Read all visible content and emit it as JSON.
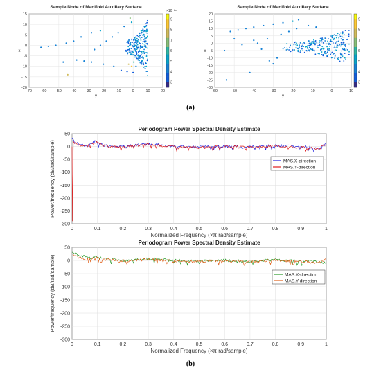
{
  "figure": {
    "caption_a": "(a)",
    "caption_b": "(b)"
  },
  "chart_data": [
    {
      "type": "scatter",
      "title": "Sample Node of Manifold Auxiliary Surface",
      "xlabel": "y",
      "ylabel": "x",
      "xlim": [
        -70,
        20
      ],
      "ylim": [
        -20,
        15
      ],
      "xticks": [
        "-70",
        "-60",
        "-50",
        "-40",
        "-30",
        "-20",
        "-10",
        "0",
        "10",
        "20"
      ],
      "yticks": [
        "15",
        "10",
        "5",
        "0",
        "-5",
        "-10",
        "-15",
        "-20"
      ],
      "colorbar": {
        "exponent": "×10⁻²⁸",
        "ticks": [
          "3",
          "4",
          "5",
          "6",
          "7",
          "8",
          "9"
        ],
        "range": [
          2.5,
          9.5
        ]
      },
      "grid": true,
      "points": [
        [
          -62,
          -1,
          4
        ],
        [
          -57,
          -0.5,
          4
        ],
        [
          -52,
          0,
          4
        ],
        [
          -45,
          1,
          4
        ],
        [
          -40,
          2,
          4
        ],
        [
          -35,
          4,
          4
        ],
        [
          -28,
          6,
          4
        ],
        [
          -22,
          7,
          5
        ],
        [
          -38,
          -7,
          4
        ],
        [
          -33,
          -7.5,
          4
        ],
        [
          -28,
          -8,
          4
        ],
        [
          -20,
          -9,
          4
        ],
        [
          -13,
          -10,
          4
        ],
        [
          -47,
          -8,
          4
        ],
        [
          -44,
          -14,
          8
        ],
        [
          -2,
          13,
          7
        ],
        [
          -1,
          11,
          5
        ],
        [
          -6,
          9,
          4
        ],
        [
          -10,
          6,
          4
        ],
        [
          -14,
          4,
          4
        ],
        [
          -18,
          2,
          4
        ],
        [
          -22,
          0,
          4
        ],
        [
          -26,
          -2,
          4
        ],
        [
          -8,
          -12,
          3
        ],
        [
          -4,
          -12.5,
          3
        ],
        [
          0,
          -13,
          3
        ],
        [
          -3,
          -9,
          8
        ],
        [
          -1,
          -10,
          9
        ],
        [
          0.5,
          -8,
          6
        ],
        [
          2,
          -10,
          4
        ]
      ],
      "dense_region": {
        "y_range": [
          -5,
          10
        ],
        "x_range": [
          -15,
          13
        ]
      }
    },
    {
      "type": "scatter",
      "title": "Sample Node of Manifold Auxiliary Surface",
      "xlabel": "y",
      "ylabel": "x",
      "xlim": [
        -60,
        10
      ],
      "ylim": [
        -30,
        20
      ],
      "xticks": [
        "-60",
        "-50",
        "-40",
        "-30",
        "-20",
        "-10",
        "0",
        "10"
      ],
      "yticks": [
        "20",
        "15",
        "10",
        "5",
        "0",
        "-5",
        "-10",
        "-15",
        "-20",
        "-25",
        "-30"
      ],
      "colorbar": {
        "ticks": [
          "3",
          "4",
          "5",
          "6",
          "7",
          "8",
          "9"
        ],
        "range": [
          2.5,
          9.5
        ]
      },
      "grid": true,
      "points": [
        [
          -52,
          8,
          4
        ],
        [
          -48,
          9,
          4
        ],
        [
          -44,
          10,
          4
        ],
        [
          -40,
          11,
          4
        ],
        [
          -35,
          12,
          4
        ],
        [
          -30,
          13,
          4
        ],
        [
          -25,
          14,
          4
        ],
        [
          -20,
          15,
          5
        ],
        [
          -17,
          16,
          4
        ],
        [
          -54,
          -25,
          4
        ],
        [
          -42,
          -20,
          4
        ],
        [
          -55,
          -5,
          4
        ],
        [
          -32,
          -12,
          4
        ],
        [
          -30,
          -14,
          4
        ],
        [
          -28,
          -10,
          4
        ],
        [
          -36,
          -4,
          4
        ],
        [
          -38,
          0,
          4
        ],
        [
          -40,
          2,
          4
        ],
        [
          -33,
          3,
          4
        ],
        [
          -26,
          6,
          4
        ],
        [
          -22,
          8,
          4
        ],
        [
          -18,
          10,
          4
        ],
        [
          -12,
          12,
          4
        ],
        [
          -8,
          11,
          4
        ],
        [
          -46,
          -1,
          4
        ],
        [
          -50,
          3,
          4
        ]
      ],
      "dense_region": {
        "y_range": [
          -26,
          9
        ],
        "x_range": [
          -15,
          10
        ]
      }
    },
    {
      "type": "line",
      "title": "Periodogram Power Spectral Density Estimate",
      "xlabel": "Normalized Frequency  (×π rad/sample)",
      "ylabel": "Power/frequency (dB/rad/sample)",
      "xlim": [
        0,
        1
      ],
      "ylim": [
        -300,
        50
      ],
      "xticks": [
        "0",
        "0.1",
        "0.2",
        "0.3",
        "0.4",
        "0.5",
        "0.6",
        "0.7",
        "0.8",
        "0.9",
        "1"
      ],
      "yticks": [
        "50",
        "0",
        "-50",
        "-100",
        "-150",
        "-200",
        "-250",
        "-300"
      ],
      "grid": true,
      "legend_position": "right",
      "series": [
        {
          "name": "MAS.X-direction",
          "color": "#1f1fdf",
          "x": [
            0,
            0.01,
            0.03,
            0.06,
            0.08,
            0.09,
            0.1,
            0.12,
            0.15,
            0.2,
            0.3,
            0.4,
            0.5,
            0.6,
            0.7,
            0.8,
            0.9,
            0.97,
            1
          ],
          "y": [
            34,
            20,
            8,
            4,
            12,
            20,
            16,
            6,
            2,
            -1,
            10,
            2,
            -2,
            2,
            -2,
            4,
            -1,
            -6,
            12
          ]
        },
        {
          "name": "MAS.Y-direction",
          "color": "#df1f1f",
          "x": [
            0,
            0.002,
            0.005,
            0.01,
            0.03,
            0.06,
            0.08,
            0.09,
            0.1,
            0.12,
            0.15,
            0.2,
            0.3,
            0.4,
            0.5,
            0.6,
            0.7,
            0.8,
            0.9,
            0.97,
            1
          ],
          "y": [
            0,
            -290,
            20,
            16,
            6,
            2,
            10,
            18,
            14,
            4,
            0,
            -3,
            8,
            0,
            -4,
            0,
            -4,
            2,
            -3,
            -8,
            8
          ]
        }
      ]
    },
    {
      "type": "line",
      "title": "Periodogram Power Spectral Density Estimate",
      "xlabel": "Normalized Frequency  (×π rad/sample)",
      "ylabel": "Power/frequency (dB/rad/sample)",
      "xlim": [
        0,
        1
      ],
      "ylim": [
        -300,
        50
      ],
      "xticks": [
        "0",
        "0.1",
        "0.2",
        "0.3",
        "0.4",
        "0.5",
        "0.6",
        "0.7",
        "0.8",
        "0.9",
        "1"
      ],
      "yticks": [
        "50",
        "0",
        "-50",
        "-100",
        "-150",
        "-200",
        "-250",
        "-300"
      ],
      "grid": true,
      "legend_position": "right",
      "series": [
        {
          "name": "MAS.X-direction",
          "color": "#2a9a2a",
          "x": [
            0,
            0.01,
            0.03,
            0.05,
            0.08,
            0.09,
            0.1,
            0.12,
            0.15,
            0.2,
            0.3,
            0.4,
            0.5,
            0.6,
            0.7,
            0.8,
            0.9,
            0.97,
            1
          ],
          "y": [
            32,
            26,
            20,
            14,
            8,
            18,
            12,
            8,
            4,
            0,
            6,
            0,
            -2,
            0,
            -3,
            2,
            -2,
            -6,
            -10
          ]
        },
        {
          "name": "MAS.Y-direction",
          "color": "#e0601a",
          "x": [
            0,
            0.01,
            0.03,
            0.05,
            0.08,
            0.09,
            0.1,
            0.12,
            0.15,
            0.2,
            0.3,
            0.4,
            0.5,
            0.6,
            0.7,
            0.8,
            0.9,
            0.97,
            1
          ],
          "y": [
            26,
            18,
            10,
            6,
            4,
            14,
            10,
            5,
            2,
            -2,
            4,
            -2,
            -4,
            -2,
            -4,
            0,
            -4,
            -8,
            4
          ]
        }
      ]
    }
  ]
}
